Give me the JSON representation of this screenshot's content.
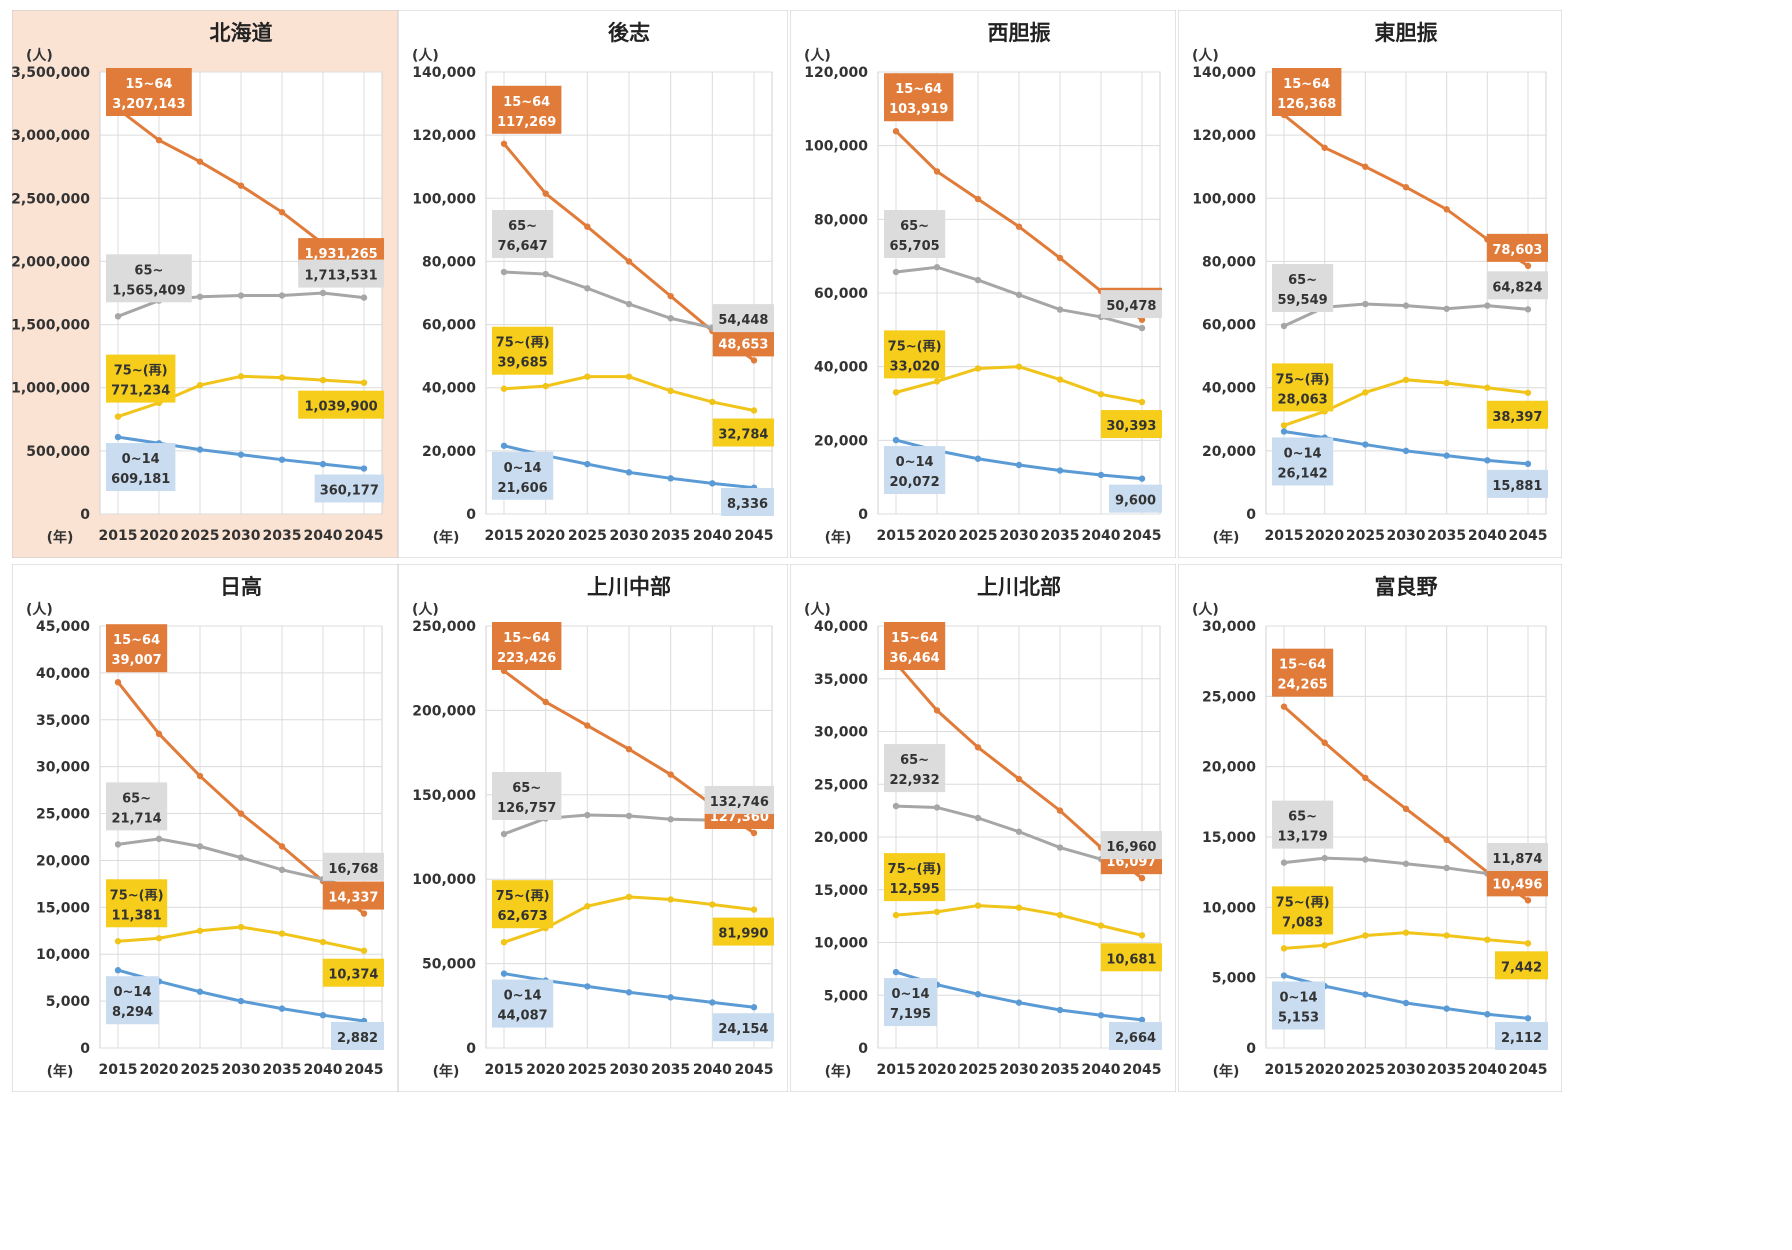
{
  "colors": {
    "age_15_64": "#e07b39",
    "age_65_plus": "#a6a6a6",
    "age_75_plus": "#f0c419",
    "age_0_14": "#5b9bd5",
    "highlight_panel_bg": "#fbe3d4",
    "label_15_64_bg": "#e07b39",
    "label_65_plus_bg": "#dcdcdc",
    "label_75_plus_bg": "#f5cd1a",
    "label_0_14_bg": "#c9dcf0"
  },
  "labels": {
    "unit": "(人)",
    "year_unit": "(年)"
  },
  "chart_data": [
    {
      "type": "line",
      "title": "北海道",
      "x": [
        2015,
        2020,
        2025,
        2030,
        2035,
        2040,
        2045
      ],
      "ylim": [
        0,
        3500000
      ],
      "yticks": [
        "0",
        "500,000",
        "1,000,000",
        "1,500,000",
        "2,000,000",
        "2,500,000",
        "3,000,000",
        "3,500,000"
      ],
      "highlight": true,
      "series": [
        {
          "name": "15~64",
          "values": [
            3207143,
            2960000,
            2790000,
            2600000,
            2390000,
            2140000,
            1931265
          ],
          "start_label": "3,207,143",
          "end_label": "1,931,265"
        },
        {
          "name": "65~",
          "values": [
            1565409,
            1690000,
            1720000,
            1730000,
            1730000,
            1750000,
            1713531
          ],
          "start_label": "1,565,409",
          "end_label": "1,713,531"
        },
        {
          "name": "75~(再)",
          "values": [
            771234,
            880000,
            1020000,
            1090000,
            1080000,
            1060000,
            1039900
          ],
          "start_label": "771,234",
          "end_label": "1,039,900"
        },
        {
          "name": "0~14",
          "values": [
            609181,
            560000,
            510000,
            470000,
            430000,
            395000,
            360177
          ],
          "start_label": "609,181",
          "end_label": "360,177"
        }
      ]
    },
    {
      "type": "line",
      "title": "後志",
      "x": [
        2015,
        2020,
        2025,
        2030,
        2035,
        2040,
        2045
      ],
      "ylim": [
        0,
        140000
      ],
      "yticks": [
        "0",
        "20,000",
        "40,000",
        "60,000",
        "80,000",
        "100,000",
        "120,000",
        "140,000"
      ],
      "highlight": false,
      "series": [
        {
          "name": "15~64",
          "values": [
            117269,
            101500,
            91000,
            80000,
            69000,
            58000,
            48653
          ],
          "start_label": "117,269",
          "end_label": "48,653"
        },
        {
          "name": "65~",
          "values": [
            76647,
            76000,
            71500,
            66500,
            62000,
            59000,
            54448
          ],
          "start_label": "76,647",
          "end_label": "54,448"
        },
        {
          "name": "75~(再)",
          "values": [
            39685,
            40500,
            43500,
            43500,
            39000,
            35500,
            32784
          ],
          "start_label": "39,685",
          "end_label": "32,784"
        },
        {
          "name": "0~14",
          "values": [
            21606,
            18500,
            15800,
            13200,
            11300,
            9700,
            8336
          ],
          "start_label": "21,606",
          "end_label": "8,336"
        }
      ]
    },
    {
      "type": "line",
      "title": "西胆振",
      "x": [
        2015,
        2020,
        2025,
        2030,
        2035,
        2040,
        2045
      ],
      "ylim": [
        0,
        120000
      ],
      "yticks": [
        "0",
        "20,000",
        "40,000",
        "60,000",
        "80,000",
        "100,000",
        "120,000"
      ],
      "highlight": false,
      "series": [
        {
          "name": "15~64",
          "values": [
            103919,
            93000,
            85500,
            78000,
            69500,
            60500,
            52732
          ],
          "start_label": "103,919",
          "end_label": "52,732"
        },
        {
          "name": "65~",
          "values": [
            65705,
            67000,
            63500,
            59500,
            55500,
            53500,
            50478
          ],
          "start_label": "65,705",
          "end_label": "50,478"
        },
        {
          "name": "75~(再)",
          "values": [
            33020,
            36000,
            39500,
            40000,
            36500,
            32500,
            30393
          ],
          "start_label": "33,020",
          "end_label": "30,393"
        },
        {
          "name": "0~14",
          "values": [
            20072,
            17200,
            15000,
            13300,
            11800,
            10600,
            9600
          ],
          "start_label": "20,072",
          "end_label": "9,600"
        }
      ]
    },
    {
      "type": "line",
      "title": "東胆振",
      "x": [
        2015,
        2020,
        2025,
        2030,
        2035,
        2040,
        2045
      ],
      "ylim": [
        0,
        140000
      ],
      "yticks": [
        "0",
        "20,000",
        "40,000",
        "60,000",
        "80,000",
        "100,000",
        "120,000",
        "140,000"
      ],
      "highlight": false,
      "series": [
        {
          "name": "15~64",
          "values": [
            126368,
            116000,
            110000,
            103500,
            96500,
            87000,
            78603
          ],
          "start_label": "126,368",
          "end_label": "78,603"
        },
        {
          "name": "65~",
          "values": [
            59549,
            65500,
            66500,
            66000,
            65000,
            66000,
            64824
          ],
          "start_label": "59,549",
          "end_label": "64,824"
        },
        {
          "name": "75~(再)",
          "values": [
            28063,
            32500,
            38500,
            42500,
            41500,
            40000,
            38397
          ],
          "start_label": "28,063",
          "end_label": "38,397"
        },
        {
          "name": "0~14",
          "values": [
            26142,
            24200,
            22000,
            20000,
            18500,
            17000,
            15881
          ],
          "start_label": "26,142",
          "end_label": "15,881"
        }
      ]
    },
    {
      "type": "line",
      "title": "日高",
      "x": [
        2015,
        2020,
        2025,
        2030,
        2035,
        2040,
        2045
      ],
      "ylim": [
        0,
        45000
      ],
      "yticks": [
        "0",
        "5,000",
        "10,000",
        "15,000",
        "20,000",
        "25,000",
        "30,000",
        "35,000",
        "40,000",
        "45,000"
      ],
      "highlight": false,
      "series": [
        {
          "name": "15~64",
          "values": [
            39007,
            33500,
            29000,
            25000,
            21500,
            17800,
            14337
          ],
          "start_label": "39,007",
          "end_label": "14,337"
        },
        {
          "name": "65~",
          "values": [
            21714,
            22300,
            21500,
            20300,
            19000,
            18000,
            16768
          ],
          "start_label": "21,714",
          "end_label": "16,768"
        },
        {
          "name": "75~(再)",
          "values": [
            11381,
            11700,
            12500,
            12900,
            12200,
            11300,
            10374
          ],
          "start_label": "11,381",
          "end_label": "10,374"
        },
        {
          "name": "0~14",
          "values": [
            8294,
            7100,
            6000,
            5000,
            4200,
            3500,
            2882
          ],
          "start_label": "8,294",
          "end_label": "2,882"
        }
      ]
    },
    {
      "type": "line",
      "title": "上川中部",
      "x": [
        2015,
        2020,
        2025,
        2030,
        2035,
        2040,
        2045
      ],
      "ylim": [
        0,
        250000
      ],
      "yticks": [
        "0",
        "50,000",
        "100,000",
        "150,000",
        "200,000",
        "250,000"
      ],
      "highlight": false,
      "series": [
        {
          "name": "15~64",
          "values": [
            223426,
            205000,
            191000,
            177000,
            162000,
            144000,
            127360
          ],
          "start_label": "223,426",
          "end_label": "127,360"
        },
        {
          "name": "65~",
          "values": [
            126757,
            136000,
            138000,
            137500,
            135500,
            135000,
            132746
          ],
          "start_label": "126,757",
          "end_label": "132,746"
        },
        {
          "name": "75~(再)",
          "values": [
            62673,
            71000,
            84000,
            89500,
            88000,
            85000,
            81990
          ],
          "start_label": "62,673",
          "end_label": "81,990"
        },
        {
          "name": "0~14",
          "values": [
            44087,
            40000,
            36500,
            33000,
            30000,
            27000,
            24154
          ],
          "start_label": "44,087",
          "end_label": "24,154"
        }
      ]
    },
    {
      "type": "line",
      "title": "上川北部",
      "x": [
        2015,
        2020,
        2025,
        2030,
        2035,
        2040,
        2045
      ],
      "ylim": [
        0,
        40000
      ],
      "yticks": [
        "0",
        "5,000",
        "10,000",
        "15,000",
        "20,000",
        "25,000",
        "30,000",
        "35,000",
        "40,000"
      ],
      "highlight": false,
      "series": [
        {
          "name": "15~64",
          "values": [
            36464,
            32000,
            28500,
            25500,
            22500,
            19000,
            16097
          ],
          "start_label": "36,464",
          "end_label": "16,097"
        },
        {
          "name": "65~",
          "values": [
            22932,
            22800,
            21800,
            20500,
            19000,
            17900,
            16960
          ],
          "start_label": "22,932",
          "end_label": "16,960"
        },
        {
          "name": "75~(再)",
          "values": [
            12595,
            12900,
            13500,
            13300,
            12600,
            11600,
            10681
          ],
          "start_label": "12,595",
          "end_label": "10,681"
        },
        {
          "name": "0~14",
          "values": [
            7195,
            6000,
            5100,
            4300,
            3600,
            3100,
            2664
          ],
          "start_label": "7,195",
          "end_label": "2,664"
        }
      ]
    },
    {
      "type": "line",
      "title": "富良野",
      "x": [
        2015,
        2020,
        2025,
        2030,
        2035,
        2040,
        2045
      ],
      "ylim": [
        0,
        30000
      ],
      "yticks": [
        "0",
        "5,000",
        "10,000",
        "15,000",
        "20,000",
        "25,000",
        "30,000"
      ],
      "highlight": false,
      "series": [
        {
          "name": "15~64",
          "values": [
            24265,
            21700,
            19200,
            17000,
            14800,
            12500,
            10496
          ],
          "start_label": "24,265",
          "end_label": "10,496"
        },
        {
          "name": "65~",
          "values": [
            13179,
            13500,
            13400,
            13100,
            12800,
            12400,
            11874
          ],
          "start_label": "13,179",
          "end_label": "11,874"
        },
        {
          "name": "75~(再)",
          "values": [
            7083,
            7300,
            8000,
            8200,
            8000,
            7700,
            7442
          ],
          "start_label": "7,083",
          "end_label": "7,442"
        },
        {
          "name": "0~14",
          "values": [
            5153,
            4400,
            3800,
            3200,
            2800,
            2400,
            2112
          ],
          "start_label": "5,153",
          "end_label": "2,112"
        }
      ]
    }
  ]
}
